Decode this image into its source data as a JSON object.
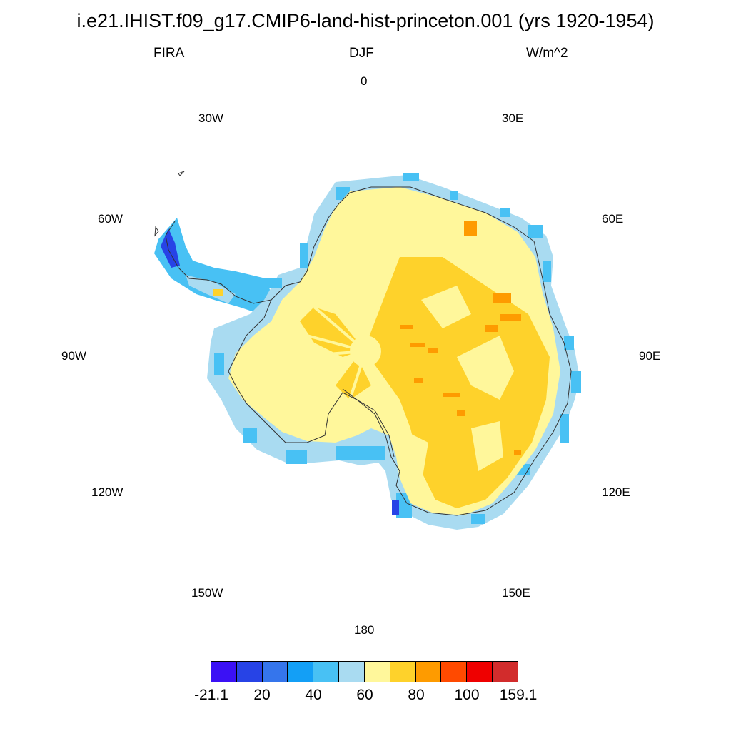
{
  "title": "i.e21.IHIST.f09_g17.CMIP6-land-hist-princeton.001 (yrs 1920-1954)",
  "subtitle": {
    "left": "FIRA",
    "center": "DJF",
    "right": "W/m^2"
  },
  "longitude_labels": {
    "0": "0",
    "30E": "30E",
    "60E": "60E",
    "90E": "90E",
    "120E": "120E",
    "150E": "150E",
    "180": "180",
    "150W": "150W",
    "120W": "120W",
    "90W": "90W",
    "60W": "60W",
    "30W": "30W"
  },
  "colorbar": {
    "colors": [
      "#3b11f5",
      "#2743e6",
      "#3575ec",
      "#139ff6",
      "#48c1f4",
      "#a9dbf1",
      "#fff79b",
      "#fed22b",
      "#fe9b00",
      "#ff4a00",
      "#ef0000",
      "#d22c2c"
    ],
    "labels": [
      "-21.1",
      "20",
      "40",
      "60",
      "80",
      "100",
      "159.1"
    ]
  }
}
